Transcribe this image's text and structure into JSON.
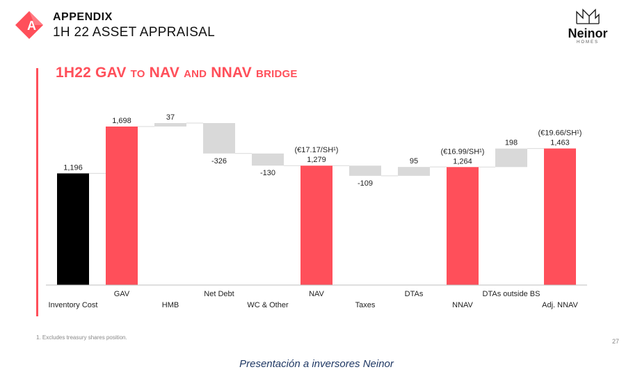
{
  "header": {
    "title": "APPENDIX",
    "subtitle": "1H 22 ASSET APPRAISAL",
    "logo_letter": "A"
  },
  "brand": {
    "name": "Neinor",
    "tagline": "HOMES"
  },
  "chart_title": {
    "part1": "1H22 GAV",
    "part2": "TO",
    "part3": "NAV",
    "part4": "AND",
    "part5": "NNAV",
    "part6": "BRIDGE"
  },
  "colors": {
    "accent": "#ff4f5a",
    "total_black": "#000000",
    "delta_grey": "#d9d9d9",
    "caption": "#1f3864"
  },
  "chart_data": {
    "type": "bar",
    "subtype": "waterfall",
    "categories": [
      "Inventory Cost",
      "GAV",
      "HMB",
      "Net Debt",
      "WC & Other",
      "NAV",
      "Taxes",
      "DTAs",
      "NNAV",
      "DTAs outside BS",
      "Adj. NNAV"
    ],
    "values": [
      1196,
      1698,
      37,
      -326,
      -130,
      1279,
      -109,
      95,
      1264,
      198,
      1463
    ],
    "value_labels": [
      "1,196",
      "1,698",
      "37",
      "-326",
      "-130",
      "1,279",
      "-109",
      "95",
      "1,264",
      "198",
      "1,463"
    ],
    "kinds": [
      "total",
      "total",
      "delta",
      "delta",
      "delta",
      "total",
      "delta",
      "delta",
      "total",
      "delta",
      "total"
    ],
    "bar_colors": [
      "#000000",
      "#ff4f5a",
      "#d9d9d9",
      "#d9d9d9",
      "#d9d9d9",
      "#ff4f5a",
      "#d9d9d9",
      "#d9d9d9",
      "#ff4f5a",
      "#d9d9d9",
      "#ff4f5a"
    ],
    "per_share_annotations": [
      {
        "category": "NAV",
        "text": "(€17.17/SH¹)"
      },
      {
        "category": "NNAV",
        "text": "(€16.99/SH¹)"
      },
      {
        "category": "Adj. NNAV",
        "text": "(€19.66/SH¹)"
      }
    ],
    "connector_lines": true,
    "grid": false,
    "ylim": [
      0,
      1750
    ],
    "xlabel": "",
    "ylabel": ""
  },
  "footnote": "1. Excludes treasury shares position.",
  "page_number": "27",
  "caption": "Presentación a inversores Neinor"
}
